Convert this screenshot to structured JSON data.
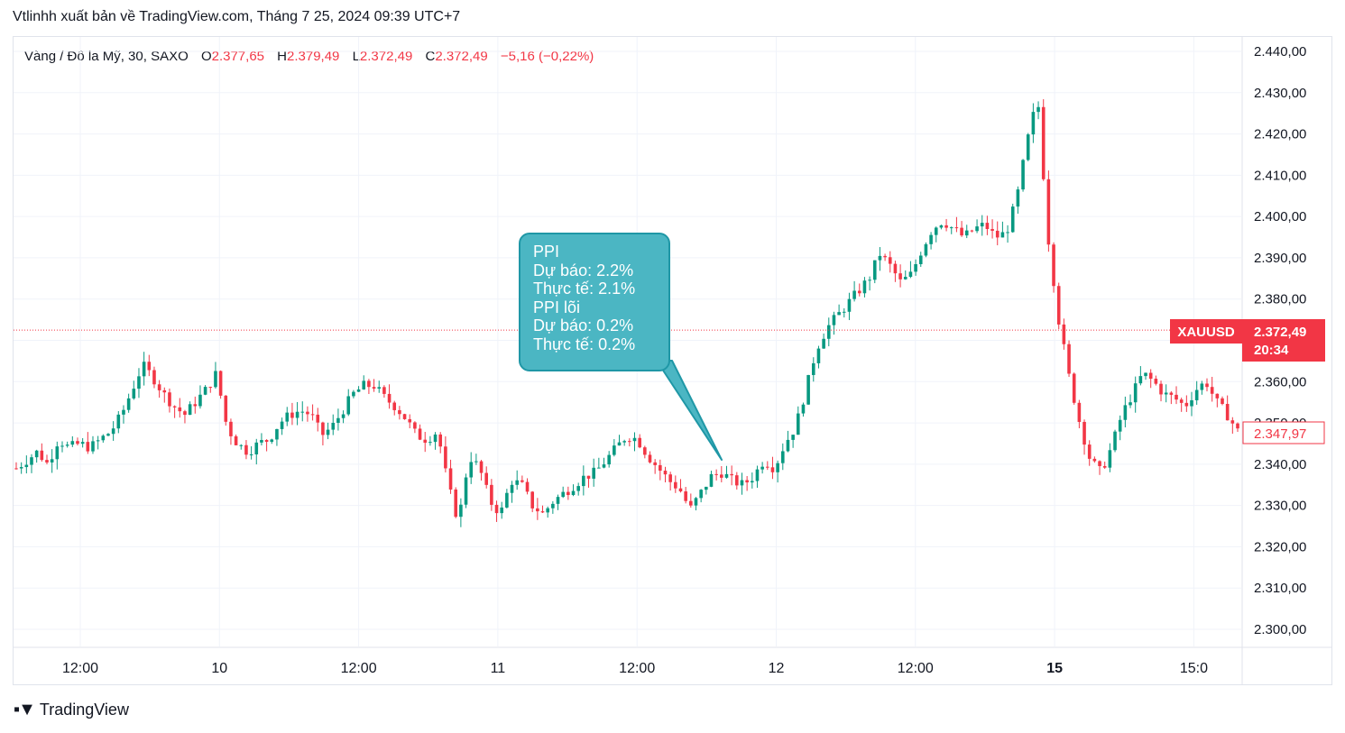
{
  "header": {
    "published_by": "Vtlinhh xuất bản về TradingView.com, Tháng 7 25, 2024 09:39 UTC+7"
  },
  "legend": {
    "symbol": "Vàng / Đô la Mỹ, 30, SAXO",
    "open_label": "O",
    "open": "2.377,65",
    "high_label": "H",
    "high": "2.379,49",
    "low_label": "L",
    "low": "2.372,49",
    "close_label": "C",
    "close": "2.372,49",
    "change": "−5,16 (−0,22%)"
  },
  "annotation": {
    "lines": [
      "PPI",
      "Dự báo: 2.2%",
      "Thực tế: 2.1%",
      "PPI lõi",
      "Dự báo: 0.2%",
      "Thực tế: 0.2%"
    ]
  },
  "price_tag": {
    "symbol": "XAUUSD",
    "price": "2.372,49",
    "countdown": "20:34",
    "color": "#f23645"
  },
  "second_tag": {
    "price": "2.347,97"
  },
  "colors": {
    "up": "#089981",
    "down": "#f23645",
    "bubble": "#4bb6c3"
  },
  "brand": {
    "name": "TradingView"
  },
  "chart_data": {
    "type": "candlestick",
    "y_axis_ticks": [
      "2.440,00",
      "2.430,00",
      "2.420,00",
      "2.410,00",
      "2.400,00",
      "2.390,00",
      "2.380,00",
      "2.370,00",
      "2.360,00",
      "2.350,00",
      "2.340,00",
      "2.330,00",
      "2.320,00",
      "2.310,00",
      "2.300,00"
    ],
    "y_axis_values": [
      2440,
      2430,
      2420,
      2410,
      2400,
      2390,
      2380,
      2370,
      2360,
      2350,
      2340,
      2330,
      2320,
      2310,
      2300
    ],
    "ylim": [
      2296,
      2449
    ],
    "x_axis_ticks": [
      "12:00",
      "10",
      "12:00",
      "11",
      "12:00",
      "12",
      "12:00",
      "15",
      "15:0"
    ],
    "x_axis_bold": [
      false,
      false,
      false,
      false,
      false,
      false,
      false,
      true,
      false
    ],
    "last_price_line": 2372.49,
    "close_path": [
      2339,
      2341,
      2343,
      2340,
      2346,
      2344,
      2345,
      2344,
      2346,
      2348,
      2352,
      2358,
      2364,
      2361,
      2357,
      2354,
      2352,
      2355,
      2358,
      2362,
      2349,
      2345,
      2343,
      2345,
      2346,
      2350,
      2352,
      2353,
      2352,
      2347,
      2349,
      2353,
      2357,
      2359,
      2359,
      2356,
      2354,
      2351,
      2347,
      2346,
      2348,
      2335,
      2326,
      2342,
      2339,
      2331,
      2328,
      2336,
      2335,
      2330,
      2328,
      2331,
      2333,
      2335,
      2337,
      2338,
      2341,
      2344,
      2347,
      2346,
      2342,
      2339,
      2336,
      2334,
      2329,
      2333,
      2337,
      2338,
      2336,
      2335,
      2337,
      2341,
      2339,
      2345,
      2349,
      2358,
      2368,
      2373,
      2376,
      2379,
      2382,
      2385,
      2391,
      2388,
      2384,
      2386,
      2392,
      2397,
      2399,
      2397,
      2395,
      2397,
      2398,
      2395,
      2396,
      2404,
      2418,
      2429,
      2395,
      2375,
      2361,
      2350,
      2341,
      2338,
      2344,
      2352,
      2357,
      2362,
      2360,
      2357,
      2356,
      2354,
      2358,
      2360,
      2355,
      2352,
      2348
    ],
    "note": "Gold vs USD, 30-minute candles (SAXO), closing-price path approximated left to right"
  }
}
